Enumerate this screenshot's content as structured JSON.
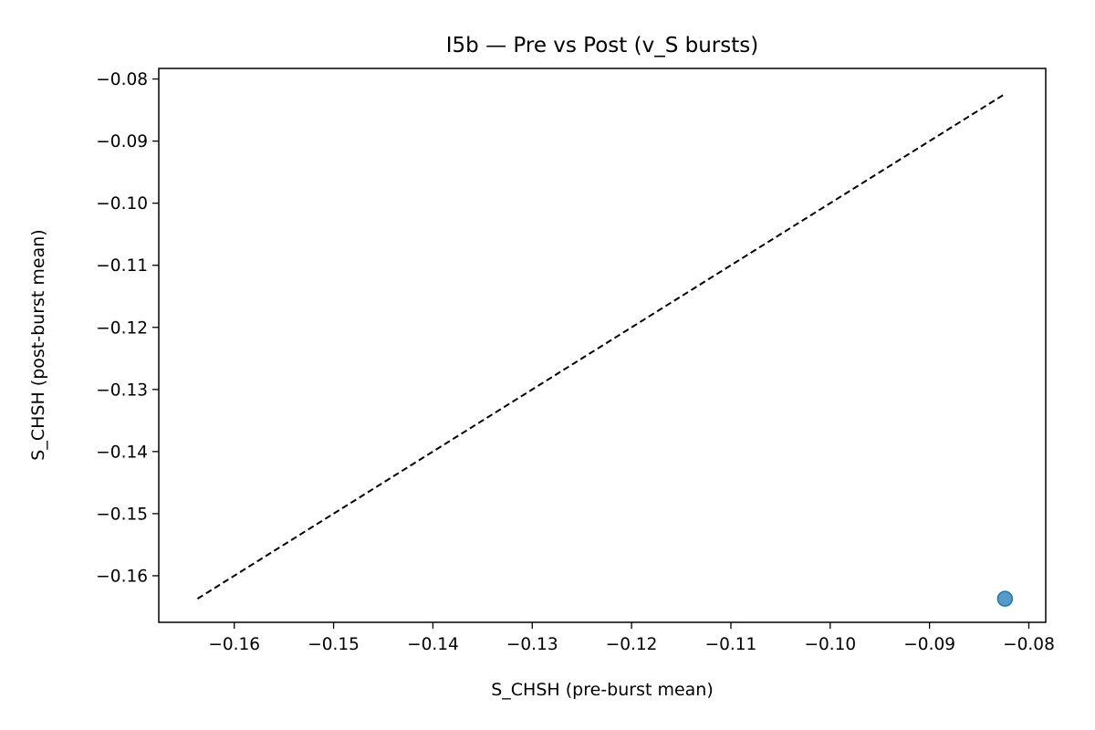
{
  "chart_data": {
    "type": "scatter",
    "title": "I5b — Pre vs Post (v_S bursts)",
    "xlabel": "S_CHSH (pre-burst mean)",
    "ylabel": "S_CHSH (post-burst mean)",
    "xlim": [
      -0.1676,
      -0.0783
    ],
    "ylim": [
      -0.1675,
      -0.0783
    ],
    "xticks": [
      -0.16,
      -0.15,
      -0.14,
      -0.13,
      -0.12,
      -0.11,
      -0.1,
      -0.09,
      -0.08
    ],
    "xtick_labels": [
      "−0.16",
      "−0.15",
      "−0.14",
      "−0.13",
      "−0.12",
      "−0.11",
      "−0.10",
      "−0.09",
      "−0.08"
    ],
    "yticks": [
      -0.16,
      -0.15,
      -0.14,
      -0.13,
      -0.12,
      -0.11,
      -0.1,
      -0.09,
      -0.08
    ],
    "ytick_labels": [
      "−0.16",
      "−0.15",
      "−0.14",
      "−0.13",
      "−0.12",
      "−0.11",
      "−0.10",
      "−0.09",
      "−0.08"
    ],
    "series": [
      {
        "points": [
          {
            "x": -0.0824,
            "y": -0.1637
          }
        ],
        "color": "#1f77b4"
      }
    ],
    "reference_line": {
      "style": "dashed",
      "color": "#000000",
      "x": [
        -0.1637,
        -0.0824
      ],
      "y": [
        -0.1637,
        -0.0824
      ]
    },
    "grid": false
  }
}
